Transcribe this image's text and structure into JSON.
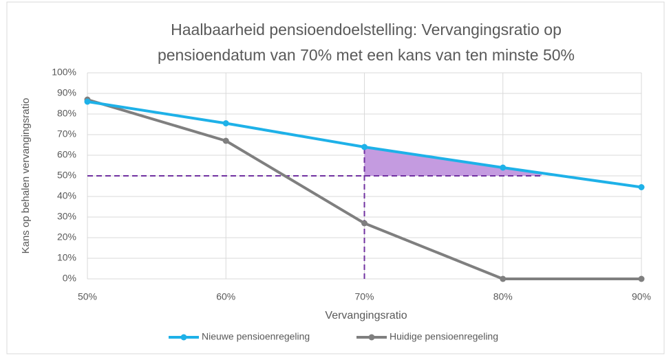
{
  "chart_data": {
    "type": "line",
    "title": [
      "Haalbaarheid pensioendoelstelling: Vervangingsratio op",
      "pensioendatum van 70% met een kans van ten minste 50%"
    ],
    "x_label": "Vervangingsratio",
    "y_label": "Kans op behalen vervangingsratio",
    "x": [
      50,
      60,
      70,
      80,
      90
    ],
    "series": [
      {
        "name": "Nieuwe pensioenregeling",
        "color": "#1eb1e8",
        "values": [
          86,
          75.5,
          64,
          54,
          44.5
        ]
      },
      {
        "name": "Huidige pensioenregeling",
        "color": "#7f7f7f",
        "values": [
          87,
          67,
          27,
          0,
          0
        ]
      }
    ],
    "xlim": [
      50,
      90
    ],
    "xticks": [
      {
        "value": 50,
        "label": "50%"
      },
      {
        "value": 60,
        "label": "60%"
      },
      {
        "value": 70,
        "label": "70%"
      },
      {
        "value": 80,
        "label": "80%"
      },
      {
        "value": 90,
        "label": "90%"
      }
    ],
    "ylim": [
      0,
      100
    ],
    "yticks": [
      {
        "value": 0,
        "label": "0%"
      },
      {
        "value": 10,
        "label": "10%"
      },
      {
        "value": 20,
        "label": "20%"
      },
      {
        "value": 30,
        "label": "30%"
      },
      {
        "value": 40,
        "label": "40%"
      },
      {
        "value": 50,
        "label": "50%"
      },
      {
        "value": 60,
        "label": "60%"
      },
      {
        "value": 70,
        "label": "70%"
      },
      {
        "value": 80,
        "label": "80%"
      },
      {
        "value": 90,
        "label": "90%"
      },
      {
        "value": 100,
        "label": "100%"
      }
    ],
    "grid": true,
    "legend": "bottom",
    "reference_color": "#7030a0",
    "hline": {
      "y": 50,
      "x": [
        50,
        82.8
      ]
    },
    "vline": {
      "x": 70,
      "y": [
        0,
        64
      ]
    },
    "shaded": {
      "x": [
        70,
        82.8
      ],
      "y_base": 50,
      "series": 0,
      "color": "#c49be0"
    }
  }
}
